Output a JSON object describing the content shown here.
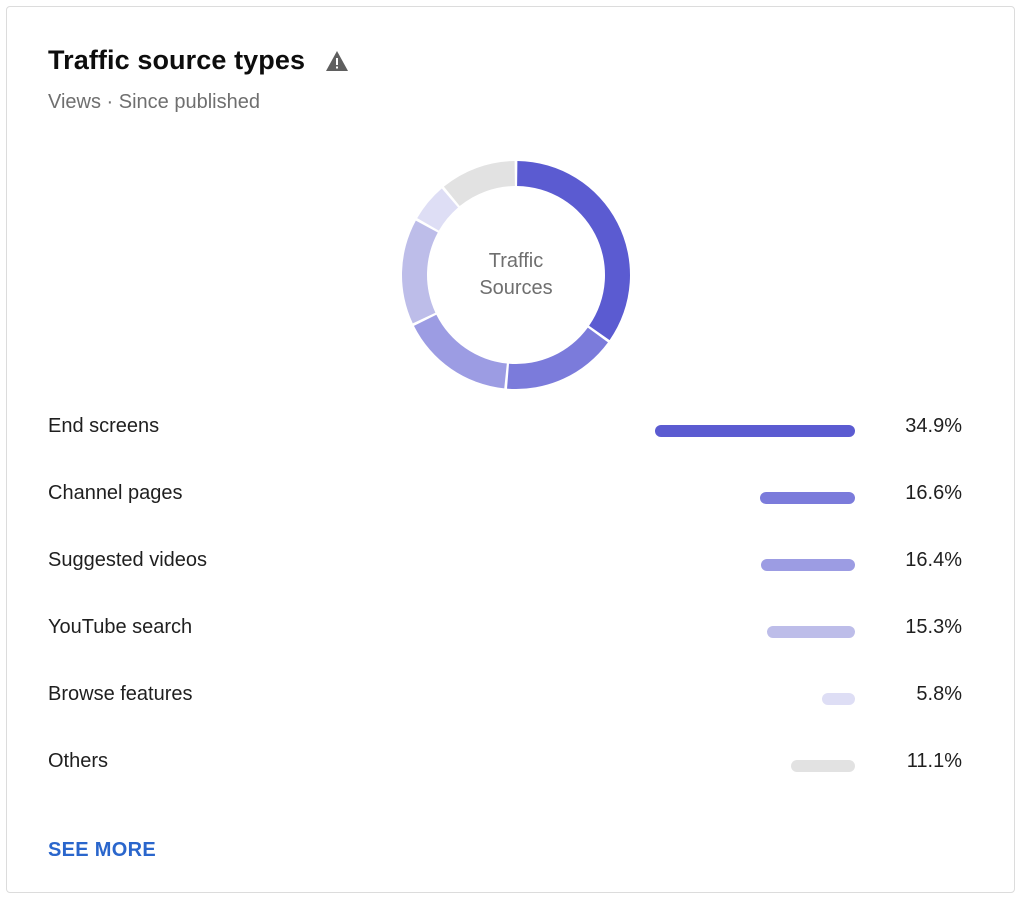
{
  "card": {
    "title": "Traffic source types",
    "subtitle": "Views · Since published",
    "warning_icon": "warning-triangle-icon",
    "see_more_label": "SEE MORE"
  },
  "chart_data": {
    "type": "pie",
    "title": "Traffic source types",
    "subtitle": "Views · Since published",
    "center_label": [
      "Traffic",
      "Sources"
    ],
    "categories": [
      "End screens",
      "Channel pages",
      "Suggested videos",
      "YouTube search",
      "Browse features",
      "Others"
    ],
    "values": [
      34.9,
      16.6,
      16.4,
      15.3,
      5.8,
      11.1
    ],
    "value_labels": [
      "34.9%",
      "16.6%",
      "16.4%",
      "15.3%",
      "5.8%",
      "11.1%"
    ],
    "colors": [
      "#5b5bd1",
      "#7b7bdb",
      "#9c9ce3",
      "#bdbde9",
      "#dedef5",
      "#e2e2e2"
    ]
  }
}
